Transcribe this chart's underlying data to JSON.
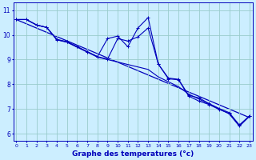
{
  "xlabel": "Graphe des temperatures (°c)",
  "background_color": "#cceeff",
  "plot_bg_color": "#cceeff",
  "line_color": "#0000bb",
  "grid_color": "#99cccc",
  "xmin": -0.3,
  "xmax": 23.3,
  "ymin": 5.7,
  "ymax": 11.3,
  "yticks": [
    6,
    7,
    8,
    9,
    10,
    11
  ],
  "xticks": [
    0,
    1,
    2,
    3,
    4,
    5,
    6,
    7,
    8,
    9,
    10,
    11,
    12,
    13,
    14,
    15,
    16,
    17,
    18,
    19,
    20,
    21,
    22,
    23
  ],
  "line1_x": [
    0,
    1,
    2,
    3,
    4,
    5,
    6,
    7,
    8,
    9,
    10,
    11,
    12,
    13,
    14,
    15,
    16,
    17,
    18,
    19,
    20,
    21,
    22,
    23
  ],
  "line1_y": [
    10.62,
    10.62,
    10.4,
    10.3,
    9.8,
    9.7,
    9.5,
    9.3,
    9.1,
    9.0,
    8.9,
    8.8,
    8.7,
    8.6,
    8.3,
    8.1,
    7.9,
    7.6,
    7.4,
    7.2,
    7.0,
    6.8,
    6.3,
    6.7
  ],
  "line2_x": [
    0,
    1,
    2,
    3,
    4,
    5,
    6,
    7,
    8,
    9,
    10,
    11,
    12,
    13,
    14,
    15,
    16,
    17,
    18,
    19,
    20,
    21,
    22,
    23
  ],
  "line2_y": [
    10.62,
    10.62,
    10.4,
    10.3,
    9.8,
    9.72,
    9.52,
    9.32,
    9.12,
    9.02,
    9.85,
    9.75,
    9.92,
    10.28,
    8.82,
    8.22,
    8.18,
    7.52,
    7.32,
    7.18,
    6.98,
    6.82,
    6.32,
    6.72
  ],
  "line3_x": [
    0,
    1,
    2,
    3,
    4,
    5,
    6,
    7,
    8,
    9,
    10,
    11,
    12,
    13,
    14,
    15,
    16,
    17,
    18,
    19,
    20,
    21,
    22,
    23
  ],
  "line3_y": [
    10.62,
    10.62,
    10.4,
    10.3,
    9.82,
    9.72,
    9.52,
    9.32,
    9.12,
    9.85,
    9.95,
    9.52,
    10.28,
    10.7,
    8.82,
    8.25,
    8.2,
    7.55,
    7.45,
    7.22,
    7.02,
    6.85,
    6.35,
    6.72
  ],
  "trend_x": [
    0,
    23
  ],
  "trend_y": [
    10.62,
    6.65
  ]
}
